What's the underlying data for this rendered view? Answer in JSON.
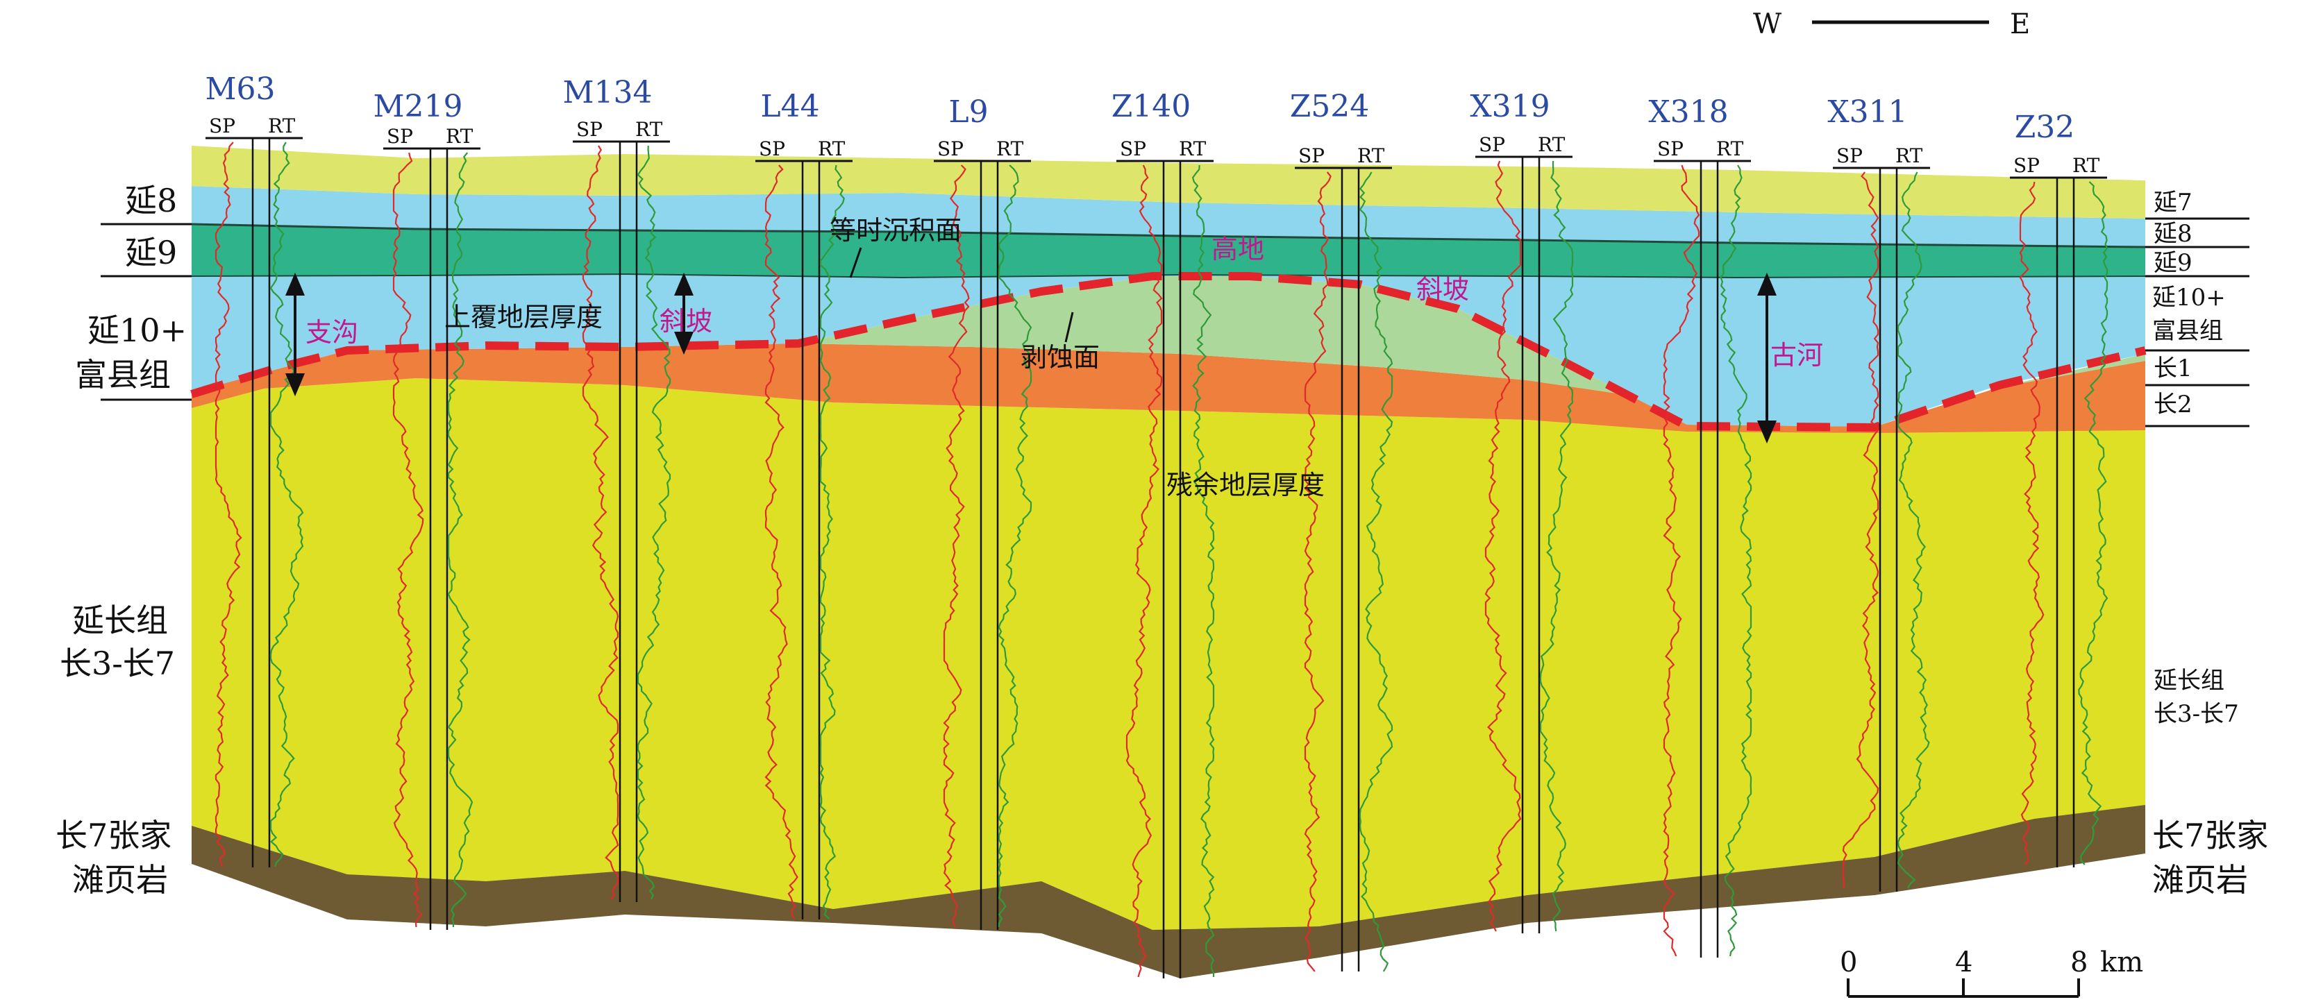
{
  "orientation": {
    "west": "W",
    "east": "E"
  },
  "scale_bar": {
    "ticks": [
      "0",
      "4",
      "8"
    ],
    "unit": "km"
  },
  "wells": [
    {
      "name": "M63",
      "sp": "SP",
      "rt": "RT"
    },
    {
      "name": "M219",
      "sp": "SP",
      "rt": "RT"
    },
    {
      "name": "M134",
      "sp": "SP",
      "rt": "RT"
    },
    {
      "name": "L44",
      "sp": "SP",
      "rt": "RT"
    },
    {
      "name": "L9",
      "sp": "SP",
      "rt": "RT"
    },
    {
      "name": "Z140",
      "sp": "SP",
      "rt": "RT"
    },
    {
      "name": "Z524",
      "sp": "SP",
      "rt": "RT"
    },
    {
      "name": "X319",
      "sp": "SP",
      "rt": "RT"
    },
    {
      "name": "X318",
      "sp": "SP",
      "rt": "RT"
    },
    {
      "name": "X311",
      "sp": "SP",
      "rt": "RT"
    },
    {
      "name": "Z32",
      "sp": "SP",
      "rt": "RT"
    }
  ],
  "left_labels": {
    "yan8": "延8",
    "yan9": "延9",
    "yan10_line1": "延10+",
    "yan10_line2": "富县组",
    "yanchang_line1": "延长组",
    "yanchang_line2": "长3-长7",
    "shale_line1": "长7张家",
    "shale_line2": "滩页岩"
  },
  "right_labels": {
    "yan7": "延7",
    "yan8": "延8",
    "yan9": "延9",
    "yan10_line1": "延10+",
    "yan10_line2": "富县组",
    "chang1": "长1",
    "chang2": "长2",
    "yanchang_line1": "延长组",
    "yanchang_line2": "长3-长7",
    "shale_line1": "长7张家",
    "shale_line2": "滩页岩"
  },
  "annotations": {
    "isochronous": "等时沉积面",
    "overlying": "上覆地层厚度",
    "slope_left": "斜坡",
    "slope_right": "斜坡",
    "highland": "高地",
    "erosion": "剥蚀面",
    "tributary": "支沟",
    "paleoriver": "古河",
    "residual": "残余地层厚度"
  },
  "colors": {
    "yan7": "#dde66a",
    "yan8": "#8ed6ee",
    "yan9": "#2fb38a",
    "yan10": "#8ed6ee",
    "fuxian_green": "#acd99b",
    "chang12": "#ee7f3d",
    "yanchang": "#dde025",
    "shale": "#6e5b34",
    "sp_curve": "#e02a2a",
    "rt_curve": "#2f9a3a",
    "erosion_line": "#e4242b",
    "well_name": "#2b4aa3",
    "annotation_magenta": "#c2188f"
  }
}
